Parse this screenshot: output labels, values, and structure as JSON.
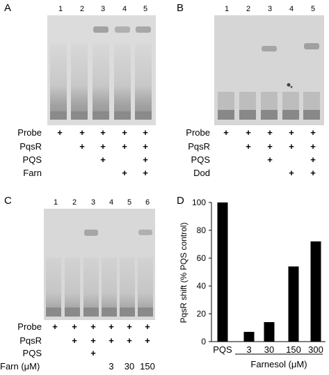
{
  "panels": {
    "A": {
      "letter": "A",
      "lanes": [
        "1",
        "2",
        "3",
        "4",
        "5"
      ],
      "rows": [
        {
          "label": "Probe",
          "marks": [
            "+",
            "+",
            "+",
            "+",
            "+"
          ]
        },
        {
          "label": "PqsR",
          "marks": [
            "",
            "+",
            "+",
            "+",
            "+"
          ]
        },
        {
          "label": "PQS",
          "marks": [
            "",
            "",
            "+",
            "",
            "+"
          ]
        },
        {
          "label": "Farn",
          "marks": [
            "",
            "",
            "",
            "+",
            "+"
          ]
        }
      ]
    },
    "B": {
      "letter": "B",
      "lanes": [
        "1",
        "2",
        "3",
        "4",
        "5"
      ],
      "rows": [
        {
          "label": "Probe",
          "marks": [
            "+",
            "+",
            "+",
            "+",
            "+"
          ]
        },
        {
          "label": "PqsR",
          "marks": [
            "",
            "+",
            "+",
            "+",
            "+"
          ]
        },
        {
          "label": "PQS",
          "marks": [
            "",
            "",
            "+",
            "",
            "+"
          ]
        },
        {
          "label": "Dod",
          "marks": [
            "",
            "",
            "",
            "+",
            "+"
          ]
        }
      ]
    },
    "C": {
      "letter": "C",
      "lanes": [
        "1",
        "2",
        "3",
        "4",
        "5",
        "6"
      ],
      "rows": [
        {
          "label": "Probe",
          "marks": [
            "+",
            "+",
            "+",
            "+",
            "+",
            "+"
          ]
        },
        {
          "label": "PqsR",
          "marks": [
            "",
            "+",
            "+",
            "+",
            "+",
            "+"
          ]
        },
        {
          "label": "PQS",
          "marks": [
            "",
            "",
            "+",
            "",
            "",
            ""
          ]
        }
      ],
      "farn_label": "Farn (μM)",
      "farn_values": [
        "",
        "",
        "",
        "3",
        "30",
        "150"
      ]
    },
    "D": {
      "letter": "D",
      "xlabel_group": "Farnesol (μM)"
    }
  },
  "chart_data": {
    "type": "bar",
    "categories": [
      "PQS",
      "3",
      "30",
      "150",
      "300"
    ],
    "values": [
      100,
      7,
      14,
      54,
      72
    ],
    "ylabel": "PqsR shift (% PQS control)",
    "xlabel": "Farnesol (μM)",
    "ylim": [
      0,
      100
    ],
    "yticks": [
      0,
      20,
      40,
      60,
      80,
      100
    ],
    "bar_color": "#000000"
  }
}
